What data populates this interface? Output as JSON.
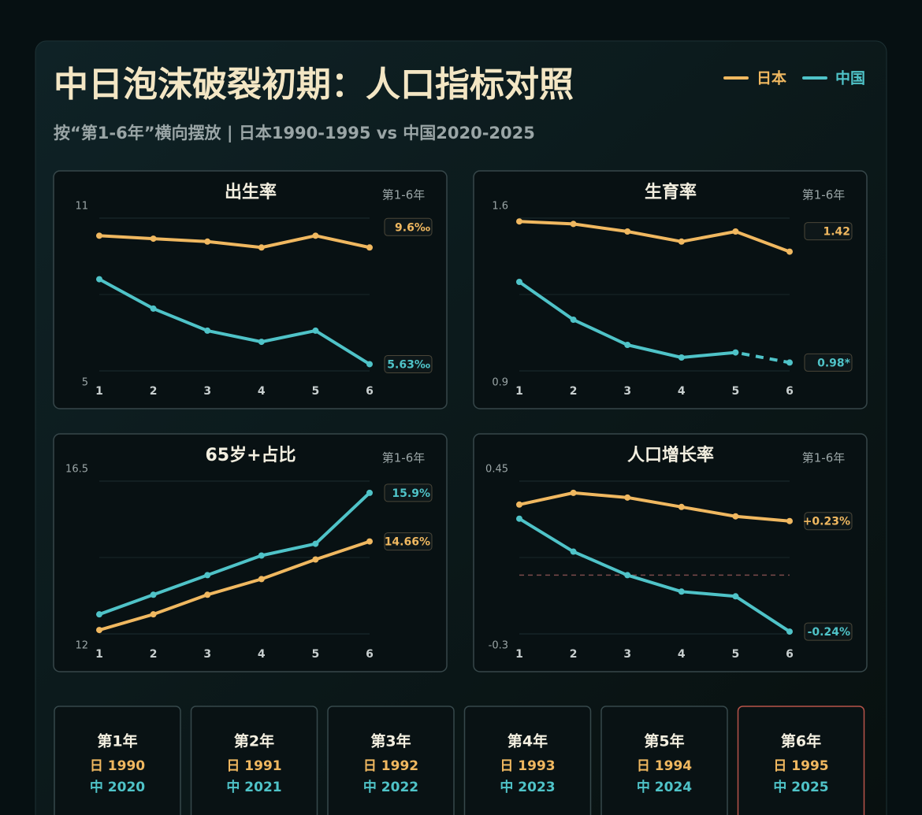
{
  "header": {
    "title": "中日泡沫破裂初期：人口指标对照",
    "subtitle": "按“第1-6年”横向摆放 | 日本1990-1995 vs 中国2020-2025"
  },
  "chart_data": [
    {
      "type": "line",
      "title": "出生率",
      "note": "第1-6年",
      "x": [
        1,
        2,
        3,
        4,
        5,
        6
      ],
      "xlim": [
        1,
        6
      ],
      "xticks": [
        1,
        2,
        3,
        4,
        5,
        6
      ],
      "ylim": [
        5,
        11
      ],
      "yticks": [
        5,
        11
      ],
      "grid": true,
      "series": [
        {
          "name": "日本",
          "color": "#f0b860",
          "values": [
            10.0,
            9.9,
            9.8,
            9.6,
            10.0,
            9.6
          ],
          "value_labels": [
            null,
            null,
            null,
            null,
            null,
            "9.6‰"
          ]
        },
        {
          "name": "中国",
          "color": "#4fc3c8",
          "values": [
            8.52,
            7.52,
            6.77,
            6.39,
            6.77,
            5.63
          ],
          "value_labels": [
            null,
            null,
            null,
            null,
            null,
            "5.63‰"
          ]
        }
      ]
    },
    {
      "type": "line",
      "title": "生育率",
      "note": "第1-6年",
      "x": [
        1,
        2,
        3,
        4,
        5,
        6
      ],
      "xlim": [
        1,
        6
      ],
      "xticks": [
        1,
        2,
        3,
        4,
        5,
        6
      ],
      "ylim": [
        0.9,
        1.6
      ],
      "yticks": [
        0.9,
        1.6
      ],
      "grid": true,
      "series": [
        {
          "color": "#f0b860",
          "values": [
            1.54,
            1.53,
            1.5,
            1.46,
            1.5,
            1.42
          ],
          "value_labels": [
            null,
            null,
            null,
            null,
            null,
            "1.42"
          ]
        },
        {
          "color": "#4fc3c8",
          "values": [
            1.3,
            1.15,
            1.05,
            1.0,
            1.02,
            0.98
          ],
          "value_labels": [
            null,
            null,
            null,
            null,
            null,
            "0.98*"
          ],
          "dashed_last_segment": true
        }
      ]
    },
    {
      "type": "line",
      "title": "65岁+占比",
      "note": "第1-6年",
      "x": [
        1,
        2,
        3,
        4,
        5,
        6
      ],
      "xlim": [
        1,
        6
      ],
      "xticks": [
        1,
        2,
        3,
        4,
        5,
        6
      ],
      "ylim": [
        12,
        16.5
      ],
      "yticks": [
        12,
        16.5
      ],
      "grid": true,
      "series": [
        {
          "color": "#f0b860",
          "values": [
            12.4,
            12.8,
            13.3,
            13.7,
            14.2,
            14.66
          ],
          "value_labels": [
            null,
            null,
            null,
            null,
            null,
            "14.66%"
          ]
        },
        {
          "color": "#4fc3c8",
          "values": [
            12.8,
            13.3,
            13.8,
            14.3,
            14.6,
            15.9
          ],
          "value_labels": [
            null,
            null,
            null,
            null,
            null,
            "15.9%"
          ]
        }
      ]
    },
    {
      "type": "line",
      "title": "人口增长率",
      "note": "第1-6年",
      "x": [
        1,
        2,
        3,
        4,
        5,
        6
      ],
      "xlim": [
        1,
        6
      ],
      "xticks": [
        1,
        2,
        3,
        4,
        5,
        6
      ],
      "ylim": [
        -0.3,
        0.45
      ],
      "yticks": [
        -0.3,
        0.45
      ],
      "grid": true,
      "ref_line": 0,
      "series": [
        {
          "color": "#f0b860",
          "values": [
            0.3,
            0.35,
            0.33,
            0.29,
            0.25,
            0.23
          ],
          "value_labels": [
            null,
            null,
            null,
            null,
            null,
            "+0.23%"
          ]
        },
        {
          "color": "#4fc3c8",
          "values": [
            0.24,
            0.1,
            0.0,
            -0.07,
            -0.09,
            -0.24
          ],
          "value_labels": [
            null,
            null,
            null,
            null,
            null,
            "-0.24%"
          ]
        }
      ]
    }
  ],
  "cards": [
    {
      "title": "第1年",
      "jp": "日 1990",
      "cn": "中 2020"
    },
    {
      "title": "第2年",
      "jp": "日 1991",
      "cn": "中 2021"
    },
    {
      "title": "第3年",
      "jp": "日 1992",
      "cn": "中 2022"
    },
    {
      "title": "第4年",
      "jp": "日 1993",
      "cn": "中 2023"
    },
    {
      "title": "第5年",
      "jp": "日 1994",
      "cn": "中 2024"
    },
    {
      "title": "第6年",
      "jp": "日 1995",
      "cn": "中 2025"
    }
  ]
}
